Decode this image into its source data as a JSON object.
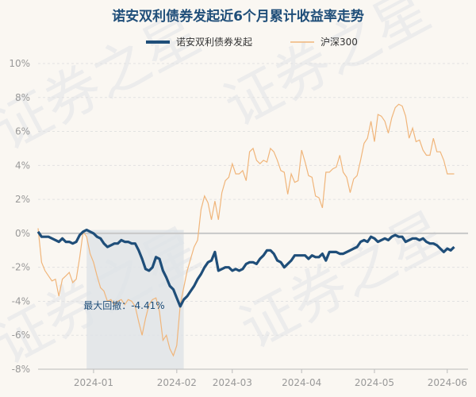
{
  "chart_data": {
    "type": "line",
    "title": "诺安双利债券发起近6个月累计收益率走势",
    "ylabel": "",
    "xlabel": "",
    "ylim": [
      -8,
      10
    ],
    "y_ticks": [
      10,
      8,
      6,
      4,
      2,
      0,
      -2,
      -4,
      -6,
      -8
    ],
    "y_tick_labels": [
      "10%",
      "8%",
      "6%",
      "4%",
      "2%",
      "0%",
      "-2%",
      "-4%",
      "-6%",
      "-8%"
    ],
    "x_range": [
      0,
      124
    ],
    "x_ticks": [
      {
        "label": "2024-01",
        "x": 16
      },
      {
        "label": "2024-02",
        "x": 40
      },
      {
        "label": "2024-03",
        "x": 56
      },
      {
        "label": "2024-04",
        "x": 76
      },
      {
        "label": "2024-05",
        "x": 97
      },
      {
        "label": "2024-06",
        "x": 118
      }
    ],
    "legend_position": "top-center",
    "drawdown": {
      "label": "最大回撤：-4.41%",
      "start_x": 14,
      "end_x": 42
    },
    "watermark": [
      "证券之星",
      "证券之星",
      "证券之星",
      "证券之星"
    ],
    "series": [
      {
        "name": "诺安双利债券发起",
        "color": "#1f4e79",
        "points": [
          [
            0,
            0.1
          ],
          [
            1,
            -0.2
          ],
          [
            2,
            -0.2
          ],
          [
            3,
            -0.2
          ],
          [
            4,
            -0.3
          ],
          [
            5,
            -0.4
          ],
          [
            6,
            -0.5
          ],
          [
            7,
            -0.3
          ],
          [
            8,
            -0.5
          ],
          [
            9,
            -0.5
          ],
          [
            10,
            -0.6
          ],
          [
            11,
            -0.5
          ],
          [
            12,
            -0.1
          ],
          [
            13,
            0.1
          ],
          [
            14,
            0.2
          ],
          [
            15,
            0.1
          ],
          [
            16,
            0.0
          ],
          [
            17,
            -0.2
          ],
          [
            18,
            -0.3
          ],
          [
            19,
            -0.6
          ],
          [
            20,
            -0.8
          ],
          [
            21,
            -0.7
          ],
          [
            22,
            -0.6
          ],
          [
            23,
            -0.6
          ],
          [
            24,
            -0.4
          ],
          [
            25,
            -0.5
          ],
          [
            26,
            -0.5
          ],
          [
            27,
            -0.6
          ],
          [
            28,
            -0.6
          ],
          [
            29,
            -1.0
          ],
          [
            30,
            -1.5
          ],
          [
            31,
            -2.1
          ],
          [
            32,
            -2.2
          ],
          [
            33,
            -2.0
          ],
          [
            34,
            -1.4
          ],
          [
            35,
            -1.5
          ],
          [
            36,
            -2.2
          ],
          [
            37,
            -2.6
          ],
          [
            38,
            -3.1
          ],
          [
            39,
            -3.3
          ],
          [
            40,
            -3.8
          ],
          [
            41,
            -4.3
          ],
          [
            42,
            -3.9
          ],
          [
            43,
            -3.7
          ],
          [
            44,
            -3.4
          ],
          [
            45,
            -3.1
          ],
          [
            46,
            -2.7
          ],
          [
            47,
            -2.4
          ],
          [
            48,
            -2.0
          ],
          [
            49,
            -1.7
          ],
          [
            50,
            -1.6
          ],
          [
            51,
            -1.1
          ],
          [
            52,
            -2.2
          ],
          [
            53,
            -2.1
          ],
          [
            54,
            -2.0
          ],
          [
            55,
            -2.0
          ],
          [
            56,
            -2.2
          ],
          [
            57,
            -2.1
          ],
          [
            58,
            -2.2
          ],
          [
            59,
            -2.1
          ],
          [
            60,
            -1.8
          ],
          [
            61,
            -1.7
          ],
          [
            62,
            -1.7
          ],
          [
            63,
            -1.8
          ],
          [
            64,
            -1.5
          ],
          [
            65,
            -1.3
          ],
          [
            66,
            -1.0
          ],
          [
            67,
            -1.0
          ],
          [
            68,
            -1.2
          ],
          [
            69,
            -1.6
          ],
          [
            70,
            -1.7
          ],
          [
            71,
            -2.0
          ],
          [
            72,
            -1.8
          ],
          [
            73,
            -1.6
          ],
          [
            74,
            -1.3
          ],
          [
            75,
            -1.3
          ],
          [
            76,
            -1.3
          ],
          [
            77,
            -1.3
          ],
          [
            78,
            -1.5
          ],
          [
            79,
            -1.3
          ],
          [
            80,
            -1.4
          ],
          [
            81,
            -1.4
          ],
          [
            82,
            -1.2
          ],
          [
            83,
            -1.6
          ],
          [
            84,
            -1.1
          ],
          [
            85,
            -1.1
          ],
          [
            86,
            -1.1
          ],
          [
            87,
            -1.2
          ],
          [
            88,
            -1.2
          ],
          [
            89,
            -1.1
          ],
          [
            90,
            -1.0
          ],
          [
            91,
            -0.9
          ],
          [
            92,
            -0.8
          ],
          [
            93,
            -0.5
          ],
          [
            94,
            -0.4
          ],
          [
            95,
            -0.5
          ],
          [
            96,
            -0.2
          ],
          [
            97,
            -0.3
          ],
          [
            98,
            -0.5
          ],
          [
            99,
            -0.4
          ],
          [
            100,
            -0.3
          ],
          [
            101,
            -0.4
          ],
          [
            102,
            -0.2
          ],
          [
            103,
            -0.1
          ],
          [
            104,
            -0.2
          ],
          [
            105,
            -0.2
          ],
          [
            106,
            -0.5
          ],
          [
            107,
            -0.4
          ],
          [
            108,
            -0.3
          ],
          [
            109,
            -0.3
          ],
          [
            110,
            -0.4
          ],
          [
            111,
            -0.3
          ],
          [
            112,
            -0.5
          ],
          [
            113,
            -0.6
          ],
          [
            114,
            -0.6
          ],
          [
            115,
            -0.7
          ],
          [
            116,
            -0.9
          ],
          [
            117,
            -1.1
          ],
          [
            118,
            -0.9
          ],
          [
            119,
            -1.0
          ],
          [
            120,
            -0.8
          ]
        ]
      },
      {
        "name": "沪深300",
        "color": "#f0b57a",
        "points": [
          [
            0,
            0.3
          ],
          [
            1,
            -1.7
          ],
          [
            2,
            -2.2
          ],
          [
            3,
            -2.5
          ],
          [
            4,
            -2.8
          ],
          [
            5,
            -2.7
          ],
          [
            6,
            -3.7
          ],
          [
            7,
            -2.7
          ],
          [
            8,
            -2.5
          ],
          [
            9,
            -2.3
          ],
          [
            10,
            -2.9
          ],
          [
            11,
            -2.7
          ],
          [
            12,
            -1.4
          ],
          [
            13,
            0.1
          ],
          [
            14,
            -0.2
          ],
          [
            15,
            -1.2
          ],
          [
            16,
            -1.7
          ],
          [
            17,
            -2.5
          ],
          [
            18,
            -3.2
          ],
          [
            19,
            -3.4
          ],
          [
            20,
            -4.0
          ],
          [
            21,
            -3.9
          ],
          [
            22,
            -4.2
          ],
          [
            23,
            -4.0
          ],
          [
            24,
            -3.9
          ],
          [
            25,
            -4.2
          ],
          [
            26,
            -3.9
          ],
          [
            27,
            -4.0
          ],
          [
            28,
            -4.3
          ],
          [
            29,
            -5.2
          ],
          [
            30,
            -6.0
          ],
          [
            31,
            -5.0
          ],
          [
            32,
            -4.2
          ],
          [
            33,
            -3.9
          ],
          [
            34,
            -3.8
          ],
          [
            35,
            -4.6
          ],
          [
            36,
            -6.3
          ],
          [
            37,
            -6.0
          ],
          [
            38,
            -6.8
          ],
          [
            39,
            -7.2
          ],
          [
            40,
            -6.6
          ],
          [
            41,
            -4.2
          ],
          [
            42,
            -3.2
          ],
          [
            43,
            -2.2
          ],
          [
            44,
            -1.5
          ],
          [
            45,
            -0.8
          ],
          [
            46,
            -0.4
          ],
          [
            47,
            1.4
          ],
          [
            48,
            2.2
          ],
          [
            49,
            1.8
          ],
          [
            50,
            0.8
          ],
          [
            51,
            1.9
          ],
          [
            52,
            0.8
          ],
          [
            53,
            2.4
          ],
          [
            54,
            3.1
          ],
          [
            55,
            3.3
          ],
          [
            56,
            4.1
          ],
          [
            57,
            3.5
          ],
          [
            58,
            3.5
          ],
          [
            59,
            3.7
          ],
          [
            60,
            3.1
          ],
          [
            61,
            4.8
          ],
          [
            62,
            5.0
          ],
          [
            63,
            4.3
          ],
          [
            64,
            4.1
          ],
          [
            65,
            4.3
          ],
          [
            66,
            4.2
          ],
          [
            67,
            5.0
          ],
          [
            68,
            4.8
          ],
          [
            69,
            4.3
          ],
          [
            70,
            3.7
          ],
          [
            71,
            3.6
          ],
          [
            72,
            2.3
          ],
          [
            73,
            3.5
          ],
          [
            74,
            3.0
          ],
          [
            75,
            3.1
          ],
          [
            76,
            4.9
          ],
          [
            77,
            4.2
          ],
          [
            78,
            3.4
          ],
          [
            79,
            3.3
          ],
          [
            80,
            2.2
          ],
          [
            81,
            2.1
          ],
          [
            82,
            1.5
          ],
          [
            83,
            3.6
          ],
          [
            84,
            3.6
          ],
          [
            85,
            3.8
          ],
          [
            86,
            3.9
          ],
          [
            87,
            4.6
          ],
          [
            88,
            3.6
          ],
          [
            89,
            3.3
          ],
          [
            90,
            2.4
          ],
          [
            91,
            3.2
          ],
          [
            92,
            3.4
          ],
          [
            93,
            4.3
          ],
          [
            94,
            5.3
          ],
          [
            95,
            5.6
          ],
          [
            96,
            6.6
          ],
          [
            97,
            5.4
          ],
          [
            98,
            7.0
          ],
          [
            99,
            6.9
          ],
          [
            100,
            6.6
          ],
          [
            101,
            5.9
          ],
          [
            102,
            6.8
          ],
          [
            103,
            7.4
          ],
          [
            104,
            7.6
          ],
          [
            105,
            7.5
          ],
          [
            106,
            6.9
          ],
          [
            107,
            5.6
          ],
          [
            108,
            6.2
          ],
          [
            109,
            5.4
          ],
          [
            110,
            5.5
          ],
          [
            111,
            4.9
          ],
          [
            112,
            4.6
          ],
          [
            113,
            4.6
          ],
          [
            114,
            5.6
          ],
          [
            115,
            4.8
          ],
          [
            116,
            4.8
          ],
          [
            117,
            4.3
          ],
          [
            118,
            3.5
          ],
          [
            119,
            3.5
          ],
          [
            120,
            3.5
          ]
        ]
      }
    ]
  }
}
